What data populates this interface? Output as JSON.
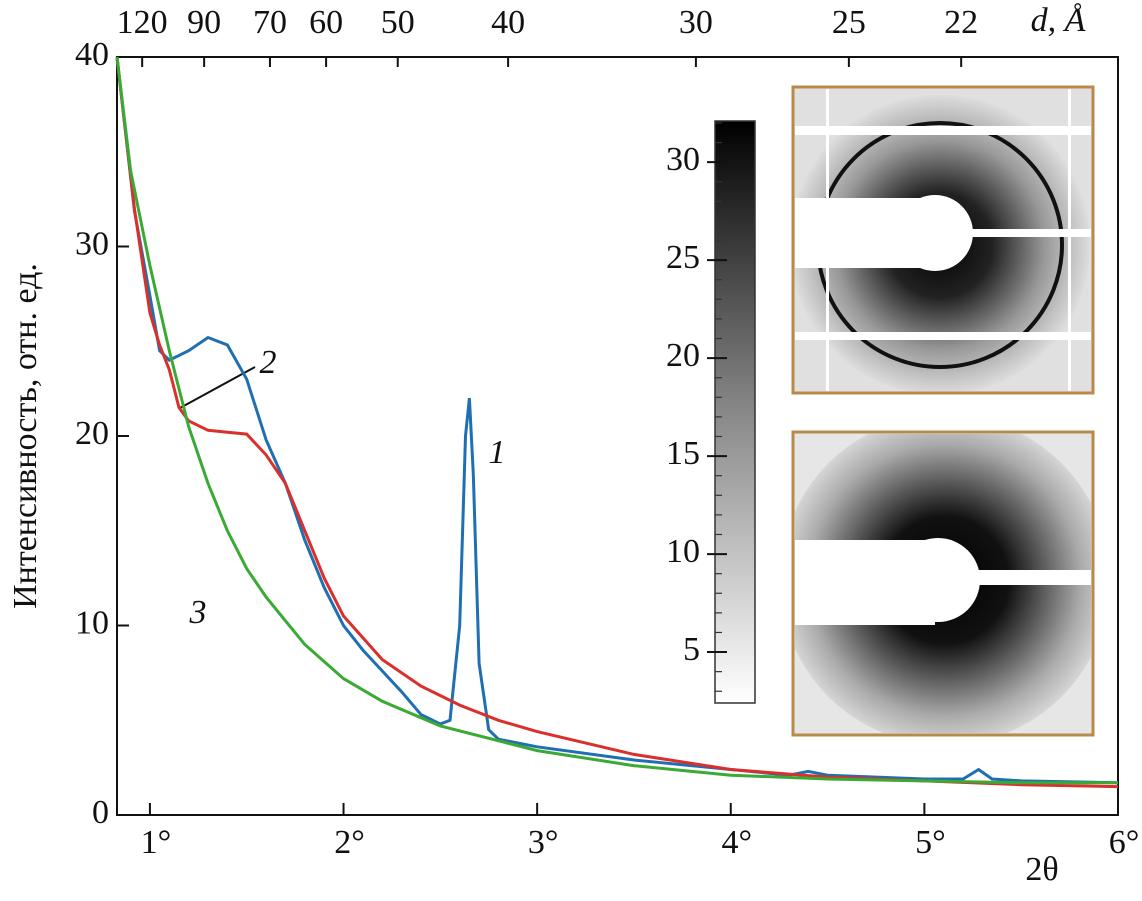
{
  "chart_data": {
    "type": "line",
    "ylabel": "Интенсивность, отн. ед.",
    "xlabel": "2θ",
    "x2label": "d, Å",
    "xlim": [
      0.83,
      6
    ],
    "ylim": [
      0,
      40
    ],
    "xticks": [
      {
        "value": 1,
        "label": "1°"
      },
      {
        "value": 2,
        "label": "2°"
      },
      {
        "value": 3,
        "label": "3°"
      },
      {
        "value": 4,
        "label": "4°"
      },
      {
        "value": 5,
        "label": "5°"
      },
      {
        "value": 6,
        "label": "6°"
      }
    ],
    "yticks": [
      0,
      10,
      20,
      30,
      40
    ],
    "x2ticks": [
      {
        "value": 0.96,
        "label": "120"
      },
      {
        "value": 1.28,
        "label": "90"
      },
      {
        "value": 1.62,
        "label": "70"
      },
      {
        "value": 1.91,
        "label": "60"
      },
      {
        "value": 2.28,
        "label": "50"
      },
      {
        "value": 2.85,
        "label": "40"
      },
      {
        "value": 3.82,
        "label": "30"
      },
      {
        "value": 4.61,
        "label": "25"
      },
      {
        "value": 5.19,
        "label": "22"
      }
    ],
    "series": [
      {
        "name": "1",
        "color": "#1f6fb2",
        "x": [
          0.83,
          0.92,
          1.0,
          1.05,
          1.1,
          1.2,
          1.3,
          1.4,
          1.5,
          1.6,
          1.7,
          1.8,
          1.9,
          2.0,
          2.1,
          2.2,
          2.3,
          2.4,
          2.5,
          2.55,
          2.6,
          2.63,
          2.65,
          2.67,
          2.7,
          2.75,
          2.8,
          3.0,
          3.5,
          4.0,
          4.3,
          4.4,
          4.5,
          5.0,
          5.2,
          5.28,
          5.35,
          5.5,
          6.0
        ],
        "values": [
          40,
          31.9,
          27.4,
          24.5,
          24.0,
          24.5,
          25.2,
          24.8,
          23.0,
          19.8,
          17.5,
          14.5,
          12.0,
          10.0,
          8.7,
          7.6,
          6.5,
          5.3,
          4.8,
          5.0,
          10,
          20,
          22,
          18,
          8,
          4.5,
          4.0,
          3.6,
          2.9,
          2.4,
          2.1,
          2.3,
          2.1,
          1.9,
          1.9,
          2.4,
          1.9,
          1.8,
          1.7
        ]
      },
      {
        "name": "2",
        "color": "#d9302c",
        "x": [
          0.83,
          0.92,
          1.0,
          1.05,
          1.1,
          1.15,
          1.2,
          1.3,
          1.4,
          1.5,
          1.6,
          1.7,
          1.8,
          1.9,
          2.0,
          2.2,
          2.4,
          2.6,
          2.8,
          3.0,
          3.5,
          4.0,
          4.5,
          5.0,
          5.5,
          6.0
        ],
        "values": [
          40,
          32,
          26.5,
          24.8,
          23.5,
          21.5,
          20.8,
          20.3,
          20.2,
          20.1,
          19,
          17.5,
          15,
          12.5,
          10.5,
          8.2,
          6.8,
          5.8,
          5.0,
          4.4,
          3.2,
          2.4,
          2.0,
          1.8,
          1.6,
          1.5
        ]
      },
      {
        "name": "3",
        "color": "#3aaa35",
        "x": [
          0.83,
          0.9,
          1.0,
          1.1,
          1.2,
          1.3,
          1.4,
          1.5,
          1.6,
          1.8,
          2.0,
          2.2,
          2.5,
          3.0,
          3.5,
          4.0,
          4.5,
          5.0,
          5.5,
          6.0
        ],
        "values": [
          40,
          34,
          29,
          24.5,
          20.5,
          17.5,
          15,
          13,
          11.5,
          9,
          7.2,
          6,
          4.7,
          3.4,
          2.6,
          2.1,
          1.9,
          1.8,
          1.7,
          1.7
        ]
      }
    ],
    "colorbar": {
      "lim": [
        2.4,
        32.1
      ],
      "ticks": [
        5,
        10,
        15,
        20,
        25,
        30
      ]
    }
  }
}
